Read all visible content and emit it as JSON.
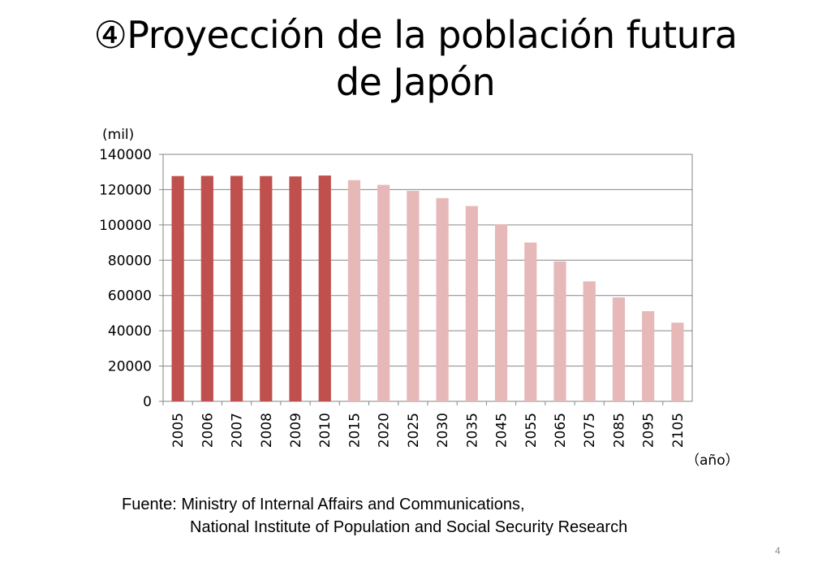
{
  "slide": {
    "title_line1": "④Proyección de la población futura",
    "title_line2": "de Japón",
    "source_line1": "Fuente: Ministry of Internal Affairs and Communications,",
    "source_line2": "National Institute of Population and Social Security Research",
    "page_number": "4"
  },
  "colors": {
    "actual": "#c0504d",
    "projected": "#e6b9b8",
    "grid": "#868686"
  },
  "chart_data": {
    "type": "bar",
    "title": "④Proyección de la población futura de Japón",
    "ylabel": "(mil)",
    "xlabel": "（año）",
    "ylim": [
      0,
      140000
    ],
    "yticks": [
      0,
      20000,
      40000,
      60000,
      80000,
      100000,
      120000,
      140000
    ],
    "grid": true,
    "categories": [
      "2005",
      "2006",
      "2007",
      "2008",
      "2009",
      "2010",
      "2015",
      "2020",
      "2025",
      "2030",
      "2035",
      "2045",
      "2055",
      "2065",
      "2075",
      "2085",
      "2095",
      "2105"
    ],
    "values": [
      127700,
      127800,
      127800,
      127700,
      127500,
      128000,
      125400,
      122700,
      119300,
      115200,
      110700,
      100400,
      90000,
      79300,
      68000,
      58900,
      51100,
      44600
    ],
    "projected_from_index": 6
  }
}
